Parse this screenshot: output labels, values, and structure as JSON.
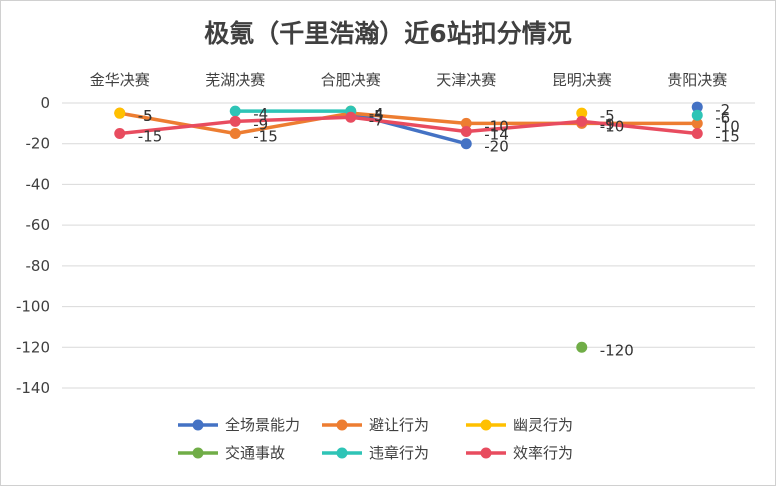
{
  "chart_data": {
    "type": "line",
    "title": "极氪（千里浩瀚）近6站扣分情况",
    "categories": [
      "金华决赛",
      "芜湖决赛",
      "合肥决赛",
      "天津决赛",
      "昆明决赛",
      "贵阳决赛"
    ],
    "ylim": [
      -140,
      0
    ],
    "yticks": [
      0,
      -20,
      -40,
      -60,
      -80,
      -100,
      -120,
      -140
    ],
    "grid": true,
    "legend_position": "bottom",
    "xaxis_position": "top",
    "series": [
      {
        "name": "全场景能力",
        "color": "#4472C4",
        "values": [
          null,
          null,
          -5,
          -20,
          null,
          -2
        ]
      },
      {
        "name": "避让行为",
        "color": "#ED7D31",
        "values": [
          -5,
          -15,
          -5,
          -10,
          -10,
          -10
        ]
      },
      {
        "name": "幽灵行为",
        "color": "#FFC000",
        "values": [
          -5,
          null,
          -4,
          null,
          -5,
          null
        ]
      },
      {
        "name": "交通事故",
        "color": "#70AD47",
        "values": [
          null,
          null,
          null,
          null,
          -120,
          null
        ]
      },
      {
        "name": "违章行为",
        "color": "#2EC4B6",
        "values": [
          null,
          -4,
          -4,
          null,
          null,
          -6
        ]
      },
      {
        "name": "效率行为",
        "color": "#E84C5F",
        "values": [
          -15,
          -9,
          -7,
          -14,
          -9,
          -15
        ]
      }
    ]
  }
}
